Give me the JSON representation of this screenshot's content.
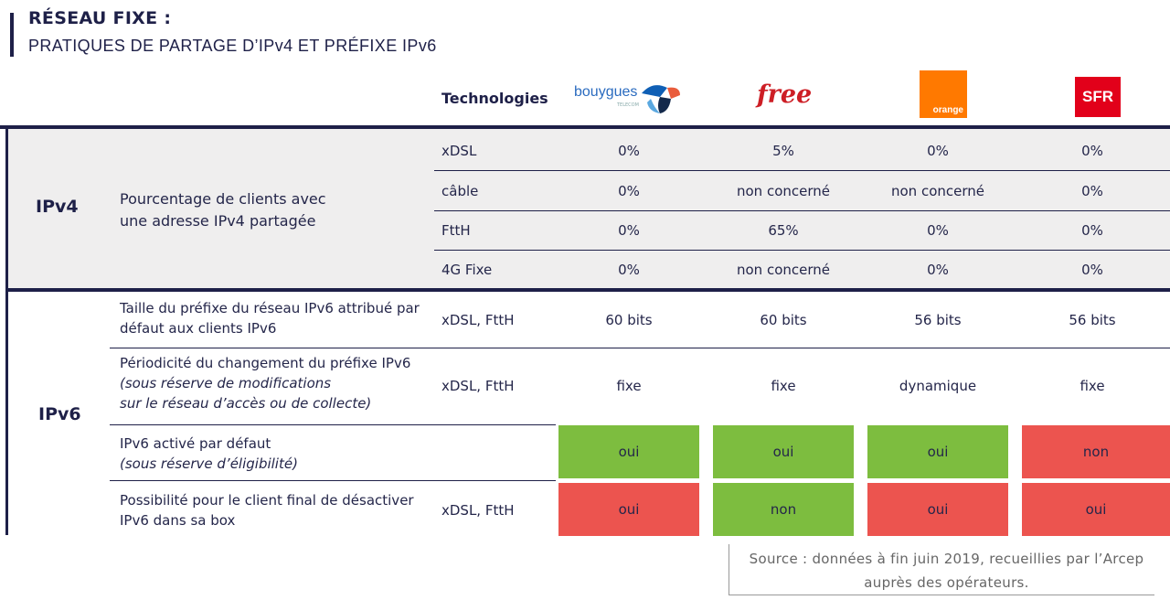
{
  "header": {
    "title": "RÉSEAU FIXE :",
    "subtitle": "PRATIQUES DE PARTAGE D’IPv4 ET PRÉFIXE IPv6"
  },
  "table": {
    "tech_header": "Technologies",
    "operators": {
      "bouygues": "bouygues",
      "bouygues_sub": "TELECOM",
      "free": "free",
      "orange": "orange",
      "sfr": "SFR"
    },
    "ipv4": {
      "label": "IPv4",
      "desc_line1": "Pourcentage de clients avec",
      "desc_line2": "une adresse IPv4 partagée",
      "rows": [
        {
          "tech": "xDSL",
          "values": [
            "0%",
            "5%",
            "0%",
            "0%"
          ]
        },
        {
          "tech": "câble",
          "values": [
            "0%",
            "non concerné",
            "non concerné",
            "0%"
          ]
        },
        {
          "tech": "FttH",
          "values": [
            "0%",
            "65%",
            "0%",
            "0%"
          ]
        },
        {
          "tech": "4G Fixe",
          "values": [
            "0%",
            "non concerné",
            "0%",
            "0%"
          ]
        }
      ]
    },
    "ipv6": {
      "label": "IPv6",
      "rows": [
        {
          "desc_line1": "Taille du préfixe du réseau IPv6 attribué par",
          "desc_line2": "défaut aux clients IPv6",
          "tech": "xDSL, FttH",
          "values": [
            "60 bits",
            "60 bits",
            "56 bits",
            "56 bits"
          ]
        },
        {
          "desc_line1": "Périodicité du changement du préfixe IPv6",
          "desc_line2": "(sous réserve de modifications",
          "desc_line3": "sur le réseau d’accès ou de collecte)",
          "tech": "xDSL, FttH",
          "values": [
            "fixe",
            "fixe",
            "dynamique",
            "fixe"
          ]
        },
        {
          "desc_line1": "IPv6 activé par défaut",
          "desc_line2": "(sous réserve d’éligibilité)",
          "tech": "",
          "values": [
            "oui",
            "oui",
            "oui",
            "non"
          ]
        },
        {
          "desc_line1": "Possibilité pour le client final de désactiver",
          "desc_line2": "IPv6 dans sa box",
          "tech": "xDSL, FttH",
          "values": [
            "oui",
            "non",
            "oui",
            "oui"
          ]
        }
      ]
    }
  },
  "colors": {
    "green": "#7dbd3f",
    "red": "#ec544f",
    "navy": "#1e2048",
    "gray_bg": "#efeeee"
  },
  "source": {
    "line1": "Source : données à fin juin 2019, recueillies par l’Arcep",
    "line2": "auprès des opérateurs."
  }
}
